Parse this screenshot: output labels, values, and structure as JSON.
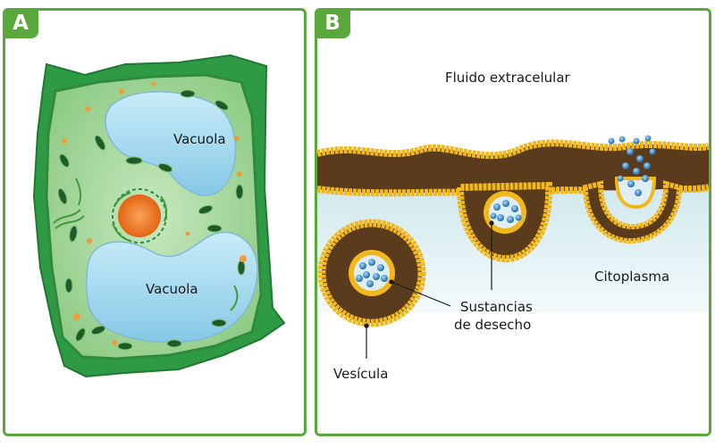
{
  "panels": {
    "a": {
      "badge": "A",
      "vacuole_top": "Vacuola",
      "vacuole_bottom": "Vacuola"
    },
    "b": {
      "badge": "B",
      "extracellular": "Fluido extracelular",
      "cytoplasm": "Citoplasma",
      "waste_line1": "Sustancias",
      "waste_line2": "de desecho",
      "vesicle": "Vesícula"
    }
  },
  "colors": {
    "frame": "#5aa83c",
    "cell_wall": "#2f9a44",
    "cytoplasm": "#a9d8a0",
    "vacuole": "#9fd3ea",
    "membrane_head": "#f2b81b",
    "lipid_tail": "#5a3c1c",
    "nucleus": "#f07a22",
    "particle": "#3a8fd0"
  }
}
